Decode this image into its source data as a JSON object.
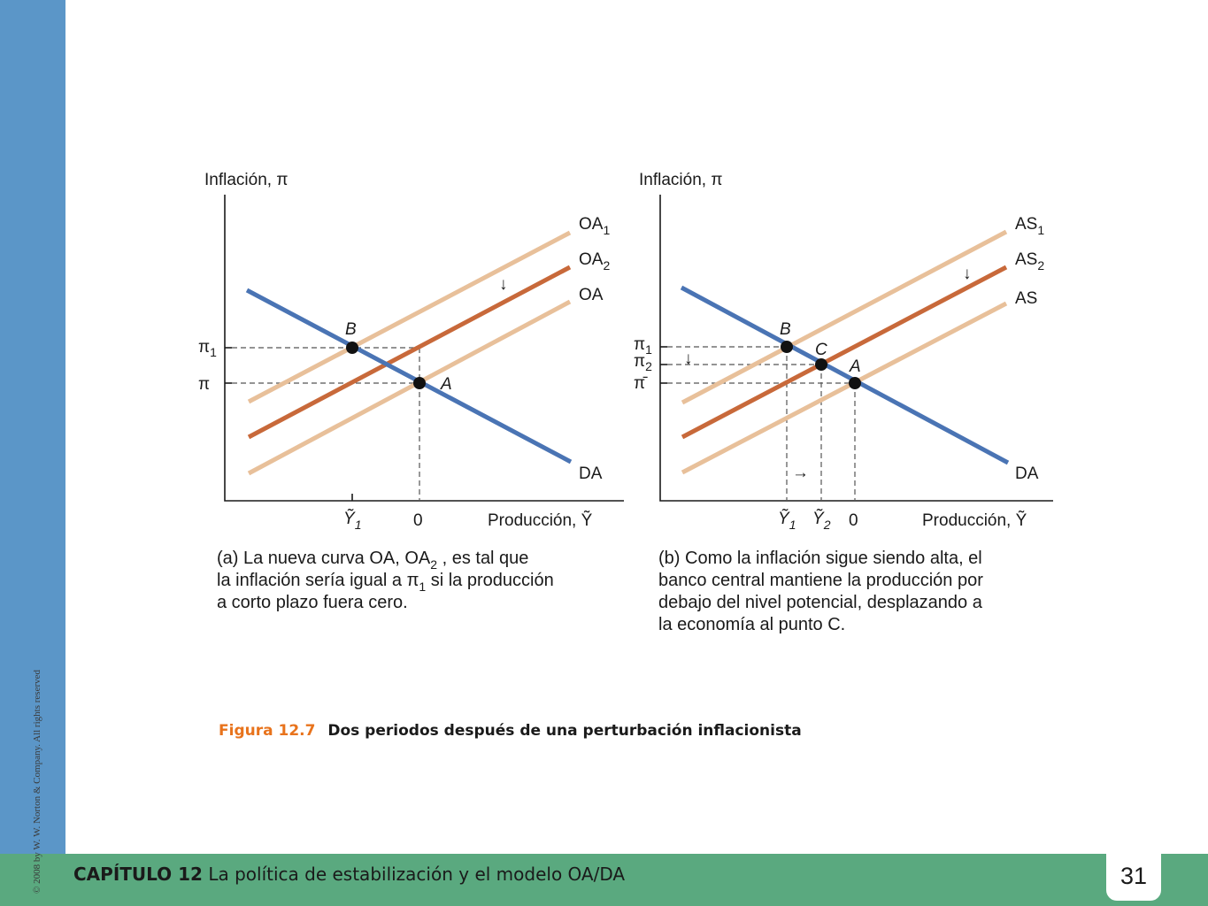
{
  "chart_data": [
    {
      "type": "line",
      "panel": "(a)",
      "ylabel": "Inflación, π",
      "xlabel": "Producción, Ỹ",
      "x_ticks": [
        "Ỹ1",
        "0"
      ],
      "y_ticks": [
        "π1",
        "π"
      ],
      "series": [
        {
          "name": "OA1",
          "color": "#e8c09a"
        },
        {
          "name": "OA2",
          "color": "#c8693a"
        },
        {
          "name": "OA",
          "color": "#e8c09a"
        },
        {
          "name": "DA",
          "color": "#4a74b4"
        }
      ],
      "points": [
        {
          "label": "B",
          "x": "Ỹ1",
          "y": "π1"
        },
        {
          "label": "A",
          "x": "0",
          "y": "π"
        }
      ],
      "annotation": "↓",
      "caption": [
        "(a) La nueva curva OA, OA2 , es tal que",
        "la inflación sería igual a π1 si la producción",
        "a corto plazo fuera cero."
      ]
    },
    {
      "type": "line",
      "panel": "(b)",
      "ylabel": "Inflación, π",
      "xlabel": "Producción, Ỹ",
      "x_ticks": [
        "Ỹ1",
        "Ỹ2",
        "0"
      ],
      "y_ticks": [
        "π1",
        "π2",
        "π̄"
      ],
      "series": [
        {
          "name": "AS1",
          "color": "#e8c09a"
        },
        {
          "name": "AS2",
          "color": "#c8693a"
        },
        {
          "name": "AS",
          "color": "#e8c09a"
        },
        {
          "name": "DA",
          "color": "#4a74b4"
        }
      ],
      "points": [
        {
          "label": "B",
          "x": "Ỹ1",
          "y": "π1"
        },
        {
          "label": "C",
          "x": "Ỹ2",
          "y": "π2"
        },
        {
          "label": "A",
          "x": "0",
          "y": "π̄"
        }
      ],
      "annotations": [
        "↓",
        "↓",
        "→"
      ],
      "caption": [
        "(b) Como la inflación sigue siendo alta, el",
        "banco central mantiene la producción por",
        "debajo del nivel potencial, desplazando a",
        "la economía al punto C."
      ]
    }
  ],
  "figure_caption": {
    "label": "Figura 12.7",
    "title": "Dos periodos después de una perturbación inflacionista"
  },
  "footer": {
    "chapter_label": "CAPÍTULO 12",
    "chapter_title": "La política de estabilización y el modelo OA/DA",
    "page_number": "31"
  },
  "copyright": "© 2008 by W. W. Norton & Company. All rights reserved"
}
